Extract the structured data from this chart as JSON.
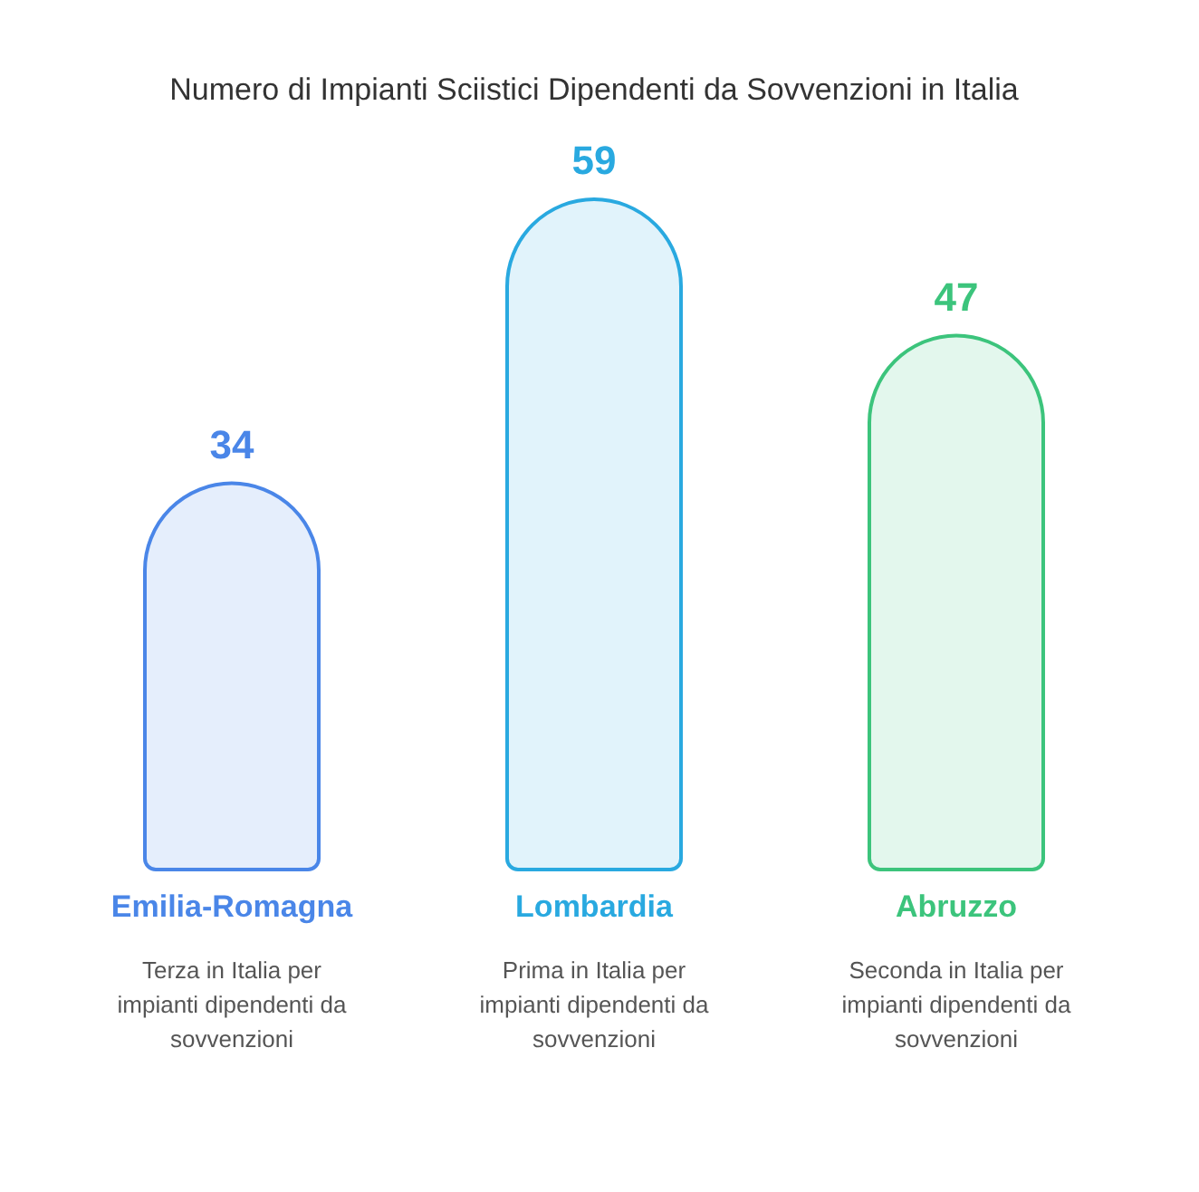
{
  "chart_data": {
    "type": "bar",
    "title": "Numero di Impianti Sciistici Dipendenti da Sovvenzioni in Italia",
    "categories": [
      "Emilia-Romagna",
      "Lombardia",
      "Abruzzo"
    ],
    "values": [
      34,
      59,
      47
    ],
    "colors": [
      "#4a86e8",
      "#29a9e0",
      "#3cc47c"
    ],
    "data_labels": true,
    "annotations": [
      "Terza in Italia per impianti dipendenti da sovvenzioni",
      "Prima in Italia per impianti dipendenti da sovvenzioni",
      "Seconda in Italia per impianti dipendenti da sovvenzioni"
    ]
  }
}
